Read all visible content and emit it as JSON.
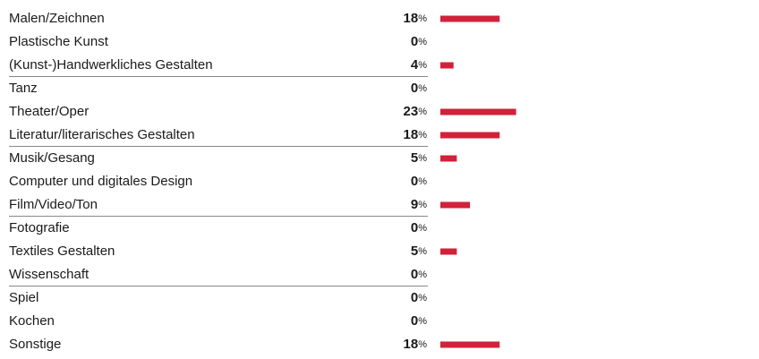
{
  "chart_data": {
    "type": "bar",
    "orientation": "horizontal",
    "color": "#d2213a",
    "unit": "%",
    "categories": [
      "Malen/Zeichnen",
      "Plastische Kunst",
      "(Kunst-)Handwerkliches Gestalten",
      "Tanz",
      "Theater/Oper",
      "Literatur/literarisches Gestalten",
      "Musik/Gesang",
      "Computer und digitales Design",
      "Film/Video/Ton",
      "Fotografie",
      "Textiles Gestalten",
      "Wissenschaft",
      "Spiel",
      "Kochen",
      "Sonstige"
    ],
    "values": [
      18,
      0,
      4,
      0,
      23,
      18,
      5,
      0,
      9,
      0,
      5,
      0,
      0,
      0,
      18
    ]
  }
}
